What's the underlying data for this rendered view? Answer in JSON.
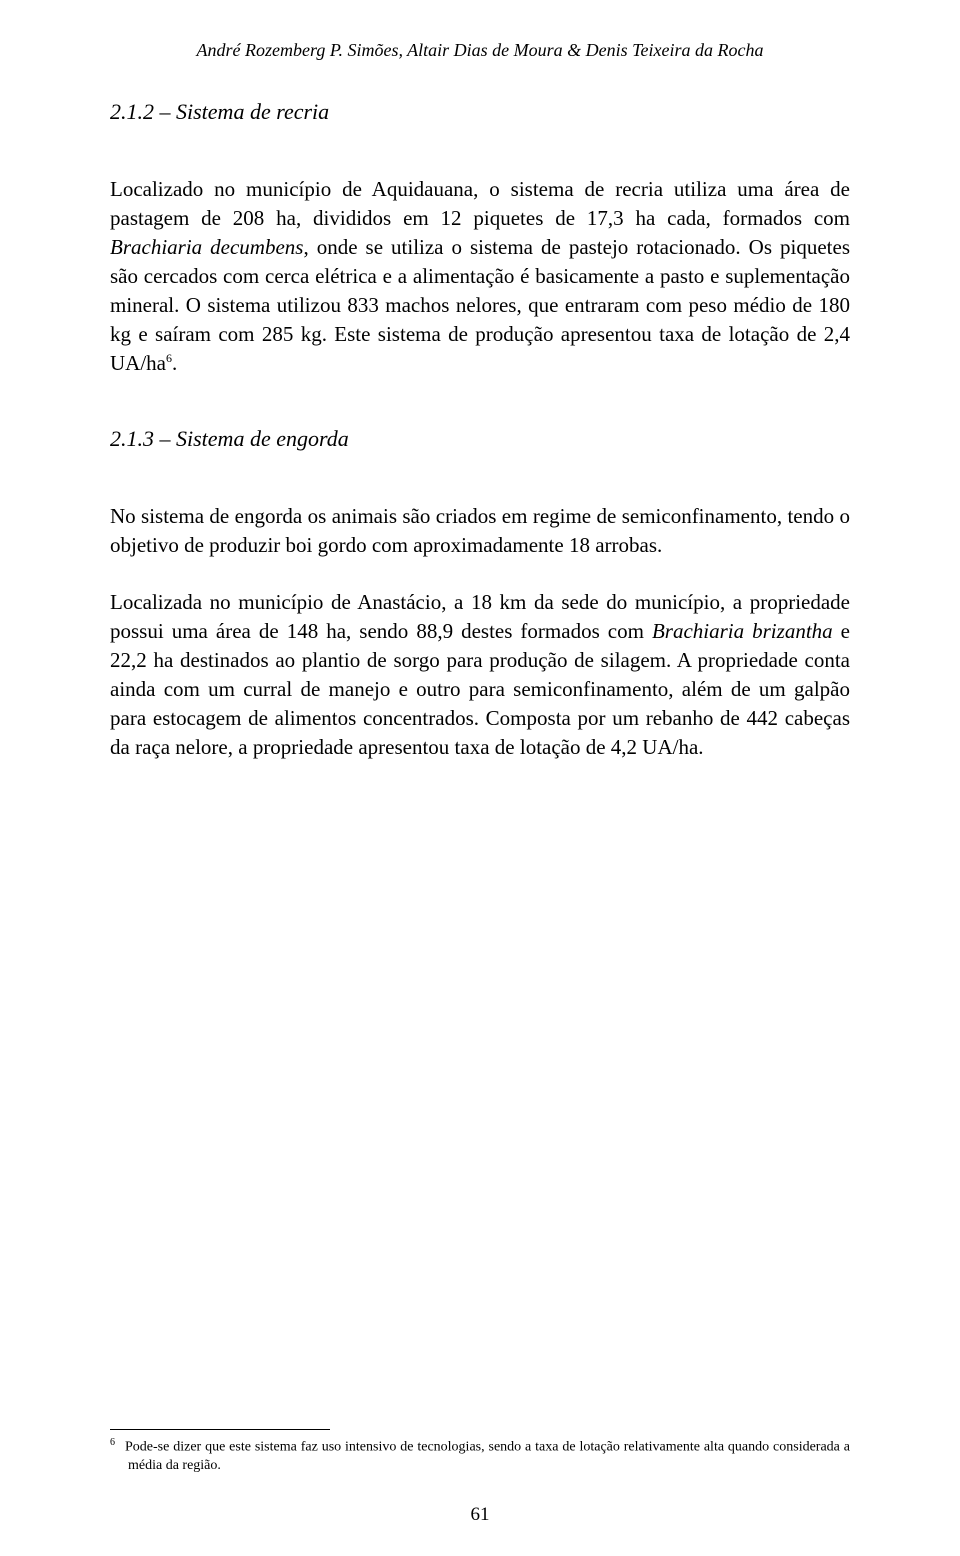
{
  "header": {
    "authors": "André Rozemberg P. Simões, Altair Dias de Moura & Denis Teixeira da Rocha"
  },
  "section1": {
    "title": "2.1.2 – Sistema de recria",
    "paragraph1_part1": "Localizado no município de Aquidauana, o sistema de recria utiliza uma área de pastagem de 208 ha, divididos em 12 piquetes de 17,3 ha cada, formados com ",
    "paragraph1_italic1": "Brachiaria decumbens",
    "paragraph1_part2": ", onde se utiliza o sistema de pastejo rotacionado. Os piquetes são cercados com cerca elétrica e a alimentação é basicamente a pasto e suplementação mineral. O sistema utilizou 833 machos nelores, que entraram com peso médio de 180 kg e saíram com 285 kg. Este sistema de produção apresentou taxa de lotação de 2,4 UA/ha",
    "footnote_ref": "6",
    "paragraph1_part3": "."
  },
  "section2": {
    "title": "2.1.3 – Sistema de engorda",
    "paragraph1": "No sistema de engorda os animais são criados em regime de semiconfinamento, tendo o objetivo de produzir boi gordo com aproximadamente 18 arrobas.",
    "paragraph2_part1": "Localizada no município de Anastácio, a 18 km da sede do município, a propriedade possui uma área de 148 ha, sendo 88,9 destes formados com ",
    "paragraph2_italic1": "Brachiaria brizantha",
    "paragraph2_part2": " e 22,2 ha destinados ao plantio de sorgo para produção de silagem. A propriedade conta ainda com um curral de manejo e outro para semiconfinamento, além de um galpão para estocagem de alimentos concentrados. Composta por um rebanho de 442 cabeças da raça nelore, a propriedade apresentou taxa de lotação de 4,2 UA/ha."
  },
  "footnote": {
    "number": "6",
    "text": "Pode-se dizer que este sistema faz uso intensivo de tecnologias, sendo a taxa de lotação relativamente alta quando considerada a média da região."
  },
  "page_number": "61"
}
